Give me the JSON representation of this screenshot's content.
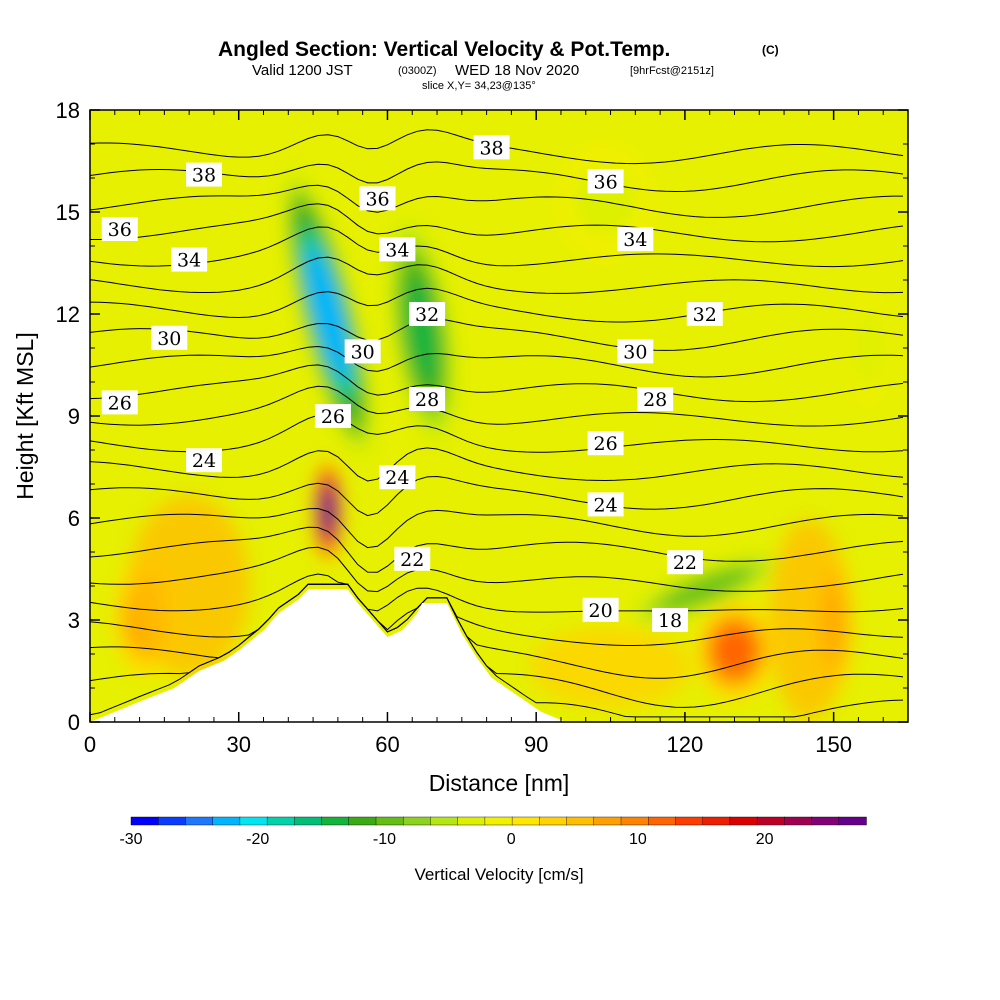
{
  "chart_data": {
    "type": "heatmap",
    "title": "Angled Section: Vertical Velocity & Pot.Temp.",
    "title_suffix": "(C)",
    "subtitle_pre": "Valid 1200 JST",
    "subtitle_small": "(0300Z)",
    "subtitle_mid": "WED 18 Nov 2020",
    "subtitle_run": "[9hrFcst@2151z]",
    "slice_label": "slice X,Y= 34,23@135°",
    "xlabel": "Distance [nm]",
    "ylabel": "Height [Kft MSL]",
    "xlim": [
      0,
      165
    ],
    "ylim": [
      0,
      18
    ],
    "x_ticks": [
      0,
      30,
      60,
      90,
      120,
      150
    ],
    "y_ticks": [
      0,
      3,
      6,
      9,
      12,
      15,
      18
    ],
    "colorbar": {
      "label": "Vertical Velocity [cm/s]",
      "range": [
        -30,
        28
      ],
      "ticks": [
        -30,
        -20,
        -10,
        0,
        10,
        20
      ],
      "colors": [
        "#0000ff",
        "#0a3cff",
        "#1e78ff",
        "#00b4ff",
        "#00e6f0",
        "#00d2aa",
        "#00be78",
        "#14b43c",
        "#3caa14",
        "#64be14",
        "#8cd21e",
        "#b4e614",
        "#dcf000",
        "#f0f000",
        "#ffe600",
        "#ffd200",
        "#ffbe00",
        "#ffa000",
        "#ff8200",
        "#ff6400",
        "#ff3c00",
        "#f01e00",
        "#dc0000",
        "#be0028",
        "#a00050",
        "#820078",
        "#64008c"
      ]
    },
    "velocity_features": [
      {
        "x": 48,
        "y": 12.3,
        "w": -22,
        "note": "updraft/downdraft core"
      },
      {
        "x": 67,
        "y": 11.5,
        "w": -13
      },
      {
        "x": 48,
        "y": 6.2,
        "w": 26
      },
      {
        "x": 130,
        "y": 2.1,
        "w": 11
      },
      {
        "x": 150,
        "y": 2.9,
        "w": 11
      },
      {
        "x": 11,
        "y": 3.1,
        "w": 8
      },
      {
        "x": 124,
        "y": 3.9,
        "w": -9
      },
      {
        "x": 104,
        "y": 15.3,
        "w": -3
      },
      {
        "x": 157,
        "y": 11.0,
        "w": -4
      }
    ],
    "contour_levels": [
      18,
      19,
      20,
      21,
      22,
      23,
      24,
      25,
      26,
      27,
      28,
      29,
      30,
      31,
      32,
      33,
      34,
      35,
      36,
      37,
      38,
      39
    ],
    "contour_labels": [
      {
        "text": "38",
        "x": 23,
        "y": 16.1
      },
      {
        "text": "38",
        "x": 81,
        "y": 16.9
      },
      {
        "text": "36",
        "x": 6,
        "y": 14.5
      },
      {
        "text": "36",
        "x": 58,
        "y": 15.4
      },
      {
        "text": "36",
        "x": 104,
        "y": 15.9
      },
      {
        "text": "34",
        "x": 20,
        "y": 13.6
      },
      {
        "text": "34",
        "x": 62,
        "y": 13.9
      },
      {
        "text": "34",
        "x": 110,
        "y": 14.2
      },
      {
        "text": "32",
        "x": 68,
        "y": 12.0
      },
      {
        "text": "32",
        "x": 124,
        "y": 12.0
      },
      {
        "text": "30",
        "x": 16,
        "y": 11.3
      },
      {
        "text": "30",
        "x": 55,
        "y": 10.9
      },
      {
        "text": "30",
        "x": 110,
        "y": 10.9
      },
      {
        "text": "28",
        "x": 68,
        "y": 9.5
      },
      {
        "text": "28",
        "x": 114,
        "y": 9.5
      },
      {
        "text": "26",
        "x": 6,
        "y": 9.4
      },
      {
        "text": "26",
        "x": 49,
        "y": 9.0
      },
      {
        "text": "26",
        "x": 104,
        "y": 8.2
      },
      {
        "text": "24",
        "x": 23,
        "y": 7.7
      },
      {
        "text": "24",
        "x": 62,
        "y": 7.2
      },
      {
        "text": "24",
        "x": 104,
        "y": 6.4
      },
      {
        "text": "22",
        "x": 65,
        "y": 4.8
      },
      {
        "text": "22",
        "x": 120,
        "y": 4.7
      },
      {
        "text": "20",
        "x": 103,
        "y": 3.3
      },
      {
        "text": "18",
        "x": 117,
        "y": 3.0
      }
    ],
    "terrain": [
      [
        0,
        0
      ],
      [
        10,
        0.6
      ],
      [
        17,
        1.0
      ],
      [
        22,
        1.5
      ],
      [
        27,
        1.8
      ],
      [
        30,
        2.1
      ],
      [
        35,
        2.7
      ],
      [
        38,
        3.2
      ],
      [
        42,
        3.6
      ],
      [
        44,
        3.9
      ],
      [
        52,
        3.9
      ],
      [
        54,
        3.5
      ],
      [
        57,
        3.0
      ],
      [
        60,
        2.5
      ],
      [
        63,
        2.7
      ],
      [
        66,
        3.2
      ],
      [
        67,
        3.5
      ],
      [
        72,
        3.5
      ],
      [
        75,
        2.6
      ],
      [
        78,
        1.9
      ],
      [
        81,
        1.3
      ],
      [
        85,
        0.9
      ],
      [
        89,
        0.5
      ],
      [
        91,
        0.3
      ],
      [
        96,
        0
      ],
      [
        165,
        0
      ]
    ]
  }
}
